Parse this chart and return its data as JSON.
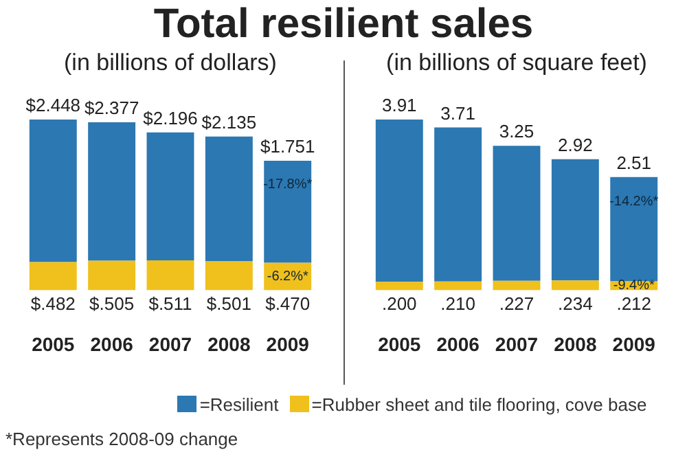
{
  "chart_data": [
    {
      "type": "bar",
      "title": "Total resilient sales",
      "subtitle": "(in billions of dollars)",
      "stacked": true,
      "legend": "bottom",
      "categories": [
        "2005",
        "2006",
        "2007",
        "2008",
        "2009"
      ],
      "series": [
        {
          "name": "=Rubber sheet and tile flooring, cove base",
          "color": "#f0c01c",
          "values": [
            0.482,
            0.505,
            0.511,
            0.501,
            0.47
          ],
          "value_labels": [
            "$.482",
            "$.505",
            "$.511",
            "$.501",
            "$.470"
          ]
        },
        {
          "name": "=Resilient",
          "color": "#2b78b2",
          "values": [
            2.448,
            2.377,
            2.196,
            2.135,
            1.751
          ],
          "value_labels": [
            "$2.448",
            "$2.377",
            "$2.196",
            "$2.135",
            "$1.751"
          ]
        }
      ],
      "annotations": [
        "-17.8%*",
        "-6.2%*",
        "*Represents 2008-09 change"
      ]
    },
    {
      "type": "bar",
      "subtitle": "(in billions of square feet)",
      "stacked": true,
      "categories": [
        "2005",
        "2006",
        "2007",
        "2008",
        "2009"
      ],
      "series": [
        {
          "color": "#f0c01c",
          "values": [
            0.2,
            0.21,
            0.227,
            0.234,
            0.212
          ],
          "value_labels": [
            ".200",
            ".210",
            ".227",
            ".234",
            ".212"
          ]
        },
        {
          "color": "#2b78b2",
          "values": [
            3.91,
            3.71,
            3.25,
            2.92,
            2.51
          ],
          "value_labels": [
            "3.91",
            "3.71",
            "3.25",
            "2.92",
            "2.51"
          ]
        }
      ],
      "annotations": [
        "-14.2%*",
        "-9.4%*"
      ]
    }
  ]
}
